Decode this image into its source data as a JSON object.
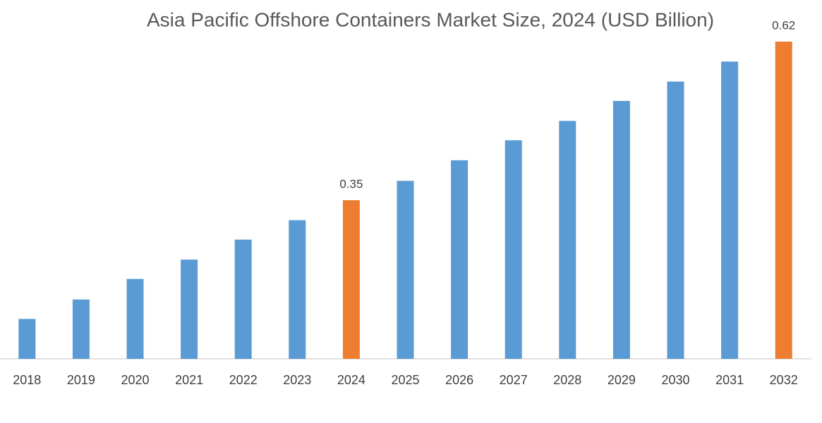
{
  "chart_data": {
    "type": "bar",
    "title": "Asia Pacific Offshore Containers Market Size, 2024 (USD Billion)",
    "categories": [
      "2018",
      "2019",
      "2020",
      "2021",
      "2022",
      "2023",
      "2024",
      "2025",
      "2026",
      "2027",
      "2028",
      "2029",
      "2030",
      "2031",
      "2032"
    ],
    "values": [
      0.148,
      0.181,
      0.216,
      0.249,
      0.283,
      0.316,
      0.35,
      0.383,
      0.418,
      0.452,
      0.485,
      0.519,
      0.552,
      0.586,
      0.62
    ],
    "value_labels": [
      null,
      null,
      null,
      null,
      null,
      null,
      "0.35",
      null,
      null,
      null,
      null,
      null,
      null,
      null,
      "0.62"
    ],
    "colors": [
      "#5b9bd5",
      "#5b9bd5",
      "#5b9bd5",
      "#5b9bd5",
      "#5b9bd5",
      "#5b9bd5",
      "#ed7d31",
      "#5b9bd5",
      "#5b9bd5",
      "#5b9bd5",
      "#5b9bd5",
      "#5b9bd5",
      "#5b9bd5",
      "#5b9bd5",
      "#ed7d31"
    ],
    "ylim": [
      0.08,
      0.62
    ]
  }
}
